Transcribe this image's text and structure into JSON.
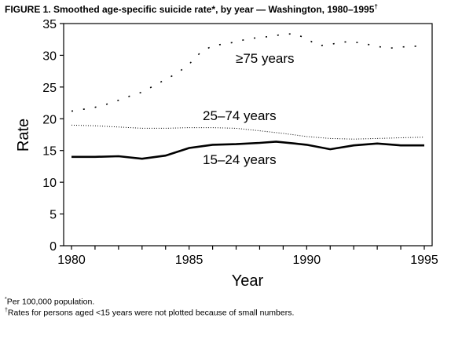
{
  "chart_data": {
    "type": "line",
    "title": "FIGURE 1. Smoothed age-specific suicide rate*, by year — Washington, 1980–1995",
    "title_mark": "†",
    "xlabel": "Year",
    "ylabel": "Rate",
    "xlim": [
      1980,
      1995
    ],
    "ylim": [
      0,
      35
    ],
    "xticks": [
      1980,
      1985,
      1990,
      1995
    ],
    "yticks": [
      0,
      5,
      10,
      15,
      20,
      25,
      30,
      35
    ],
    "grid": false,
    "series": [
      {
        "name": "≥75 years",
        "style": "sparse-dotted",
        "x": [
          1980,
          1980.5,
          1981,
          1981.5,
          1982,
          1982.5,
          1983,
          1983.5,
          1984,
          1984.5,
          1985,
          1985.5,
          1986,
          1986.5,
          1987,
          1987.5,
          1988,
          1988.5,
          1989,
          1989.5,
          1990,
          1990.5,
          1991,
          1991.5,
          1992,
          1992.5,
          1993,
          1993.5,
          1994,
          1994.5,
          1995
        ],
        "y": [
          21.2,
          21.5,
          21.8,
          22.3,
          22.9,
          23.6,
          24.2,
          25.2,
          26.2,
          27.2,
          28.6,
          30.5,
          31.5,
          31.8,
          32.1,
          32.6,
          32.8,
          33.0,
          33.3,
          33.4,
          32.6,
          31.5,
          31.7,
          32.1,
          32.1,
          31.8,
          31.4,
          31.1,
          31.3,
          31.4,
          31.5
        ]
      },
      {
        "name": "25–74 years",
        "style": "fine-dotted",
        "x": [
          1980,
          1981,
          1982,
          1983,
          1984,
          1985,
          1986,
          1987,
          1988,
          1989,
          1990,
          1991,
          1992,
          1993,
          1994,
          1995
        ],
        "y": [
          19.0,
          18.9,
          18.7,
          18.5,
          18.5,
          18.6,
          18.6,
          18.5,
          18.1,
          17.7,
          17.2,
          16.9,
          16.8,
          16.9,
          17.0,
          17.1
        ]
      },
      {
        "name": "15–24 years",
        "style": "solid",
        "x": [
          1980,
          1981,
          1982,
          1983,
          1984,
          1985,
          1986,
          1987,
          1988,
          1988.7,
          1989.5,
          1990,
          1991,
          1992,
          1993,
          1994,
          1995
        ],
        "y": [
          14.0,
          14.0,
          14.1,
          13.7,
          14.2,
          15.4,
          15.9,
          16.0,
          16.2,
          16.4,
          16.1,
          15.9,
          15.2,
          15.8,
          16.1,
          15.8,
          15.8
        ]
      }
    ]
  },
  "footnotes": [
    {
      "mark": "*",
      "text": "Per 100,000 population."
    },
    {
      "mark": "†",
      "text": "Rates for persons aged <15 years were not plotted because of small numbers."
    }
  ]
}
